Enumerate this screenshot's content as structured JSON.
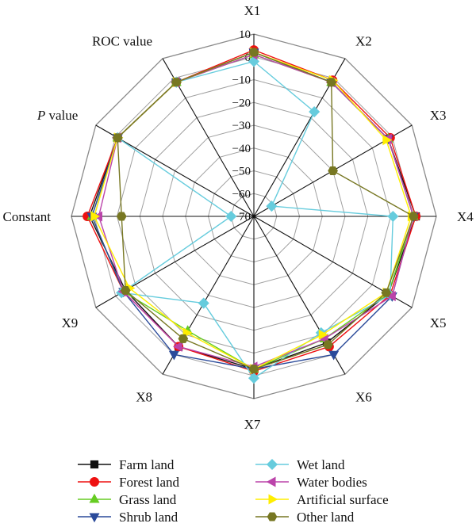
{
  "chart_data": {
    "type": "radar",
    "axes": [
      "X1",
      "X2",
      "X3",
      "X4",
      "X5",
      "X6",
      "X7",
      "X8",
      "X9",
      "Constant",
      "P value",
      "ROC value"
    ],
    "axis_label_parts": {
      "P value": {
        "italic": "P",
        "rest": " value"
      }
    },
    "r_range": [
      -70,
      10
    ],
    "ticks": [
      10,
      0,
      -10,
      -20,
      -30,
      -40,
      -50,
      -60,
      -70
    ],
    "grid": true,
    "legend_position": "bottom",
    "series": [
      {
        "name": "Farm land",
        "color": "#111111",
        "marker": "square",
        "values": [
          2,
          -2,
          -2,
          1,
          -2,
          -6,
          -3,
          -4,
          -5,
          2,
          -1,
          -2
        ]
      },
      {
        "name": "Forest land",
        "color": "#ee1111",
        "marker": "circle",
        "values": [
          3,
          -1,
          -1,
          1,
          -1,
          -4,
          -2,
          -4,
          -4,
          3,
          -1,
          -2
        ]
      },
      {
        "name": "Grass land",
        "color": "#66cc22",
        "marker": "triangle-up",
        "values": [
          1,
          -2,
          -2,
          0,
          -2,
          -8,
          -3,
          -12,
          -4,
          1,
          -1,
          -2
        ]
      },
      {
        "name": "Shrub land",
        "color": "#2a4a9a",
        "marker": "triangle-down",
        "values": [
          2,
          -2,
          -2,
          0,
          0,
          0,
          -3,
          0,
          -4,
          1,
          -1,
          -2
        ]
      },
      {
        "name": "Wet land",
        "color": "#66ccdd",
        "marker": "diamond",
        "values": [
          -2,
          -17,
          -61,
          -9,
          -1,
          -11,
          1,
          -26,
          -3,
          -60,
          -1,
          -2
        ]
      },
      {
        "name": "Water bodies",
        "color": "#bb44aa",
        "marker": "triangle-left",
        "values": [
          1,
          -2,
          -2,
          0,
          0,
          -8,
          -4,
          -4,
          -4,
          -2,
          -1,
          -2
        ]
      },
      {
        "name": "Artificial surface",
        "color": "#ffee00",
        "marker": "triangle-right",
        "values": [
          2,
          -1,
          -3,
          -1,
          -3,
          -10,
          -3,
          -11,
          -7,
          0,
          -1,
          -2
        ]
      },
      {
        "name": "Other land",
        "color": "#777722",
        "marker": "hexagon",
        "values": [
          2,
          -2,
          -30,
          0,
          -3,
          -5,
          -3,
          -8,
          -5,
          -12,
          -1,
          -2
        ]
      }
    ]
  }
}
